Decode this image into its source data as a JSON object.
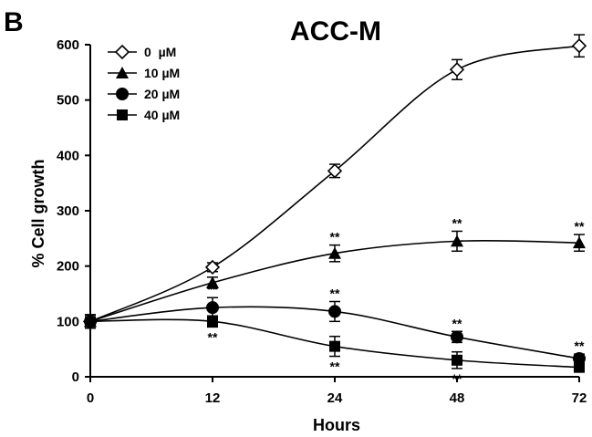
{
  "panel_label": "B",
  "chart_data": {
    "type": "line",
    "title": "ACC-M",
    "xlabel": "Hours",
    "ylabel": "% Cell growth",
    "x": [
      0,
      12,
      24,
      48,
      72
    ],
    "xticks": [
      "0",
      "12",
      "24",
      "48",
      "72"
    ],
    "ylim": [
      0,
      600
    ],
    "yticks": [
      "0",
      "100",
      "200",
      "300",
      "400",
      "500",
      "600"
    ],
    "grid": false,
    "legend_position": "top-left",
    "series": [
      {
        "name": "0  µM",
        "marker": "open-diamond",
        "values": [
          100,
          198,
          372,
          555,
          598
        ],
        "errors": [
          12,
          8,
          12,
          18,
          20
        ],
        "annotations": [
          "",
          "",
          "",
          "",
          ""
        ]
      },
      {
        "name": "10 µM",
        "marker": "filled-triangle",
        "values": [
          100,
          170,
          223,
          245,
          242
        ],
        "errors": [
          12,
          10,
          15,
          18,
          15
        ],
        "annotations": [
          "",
          "",
          "**",
          "**",
          "**"
        ]
      },
      {
        "name": "20 µM",
        "marker": "filled-circle",
        "values": [
          100,
          125,
          118,
          72,
          33
        ],
        "errors": [
          12,
          18,
          18,
          10,
          8
        ],
        "annotations": [
          "",
          "**",
          "**",
          "**",
          "**"
        ]
      },
      {
        "name": "40 µM",
        "marker": "filled-square",
        "values": [
          100,
          100,
          55,
          30,
          17
        ],
        "errors": [
          12,
          10,
          18,
          15,
          8
        ],
        "annotations": [
          "",
          "**",
          "**",
          "**",
          ""
        ]
      }
    ]
  }
}
